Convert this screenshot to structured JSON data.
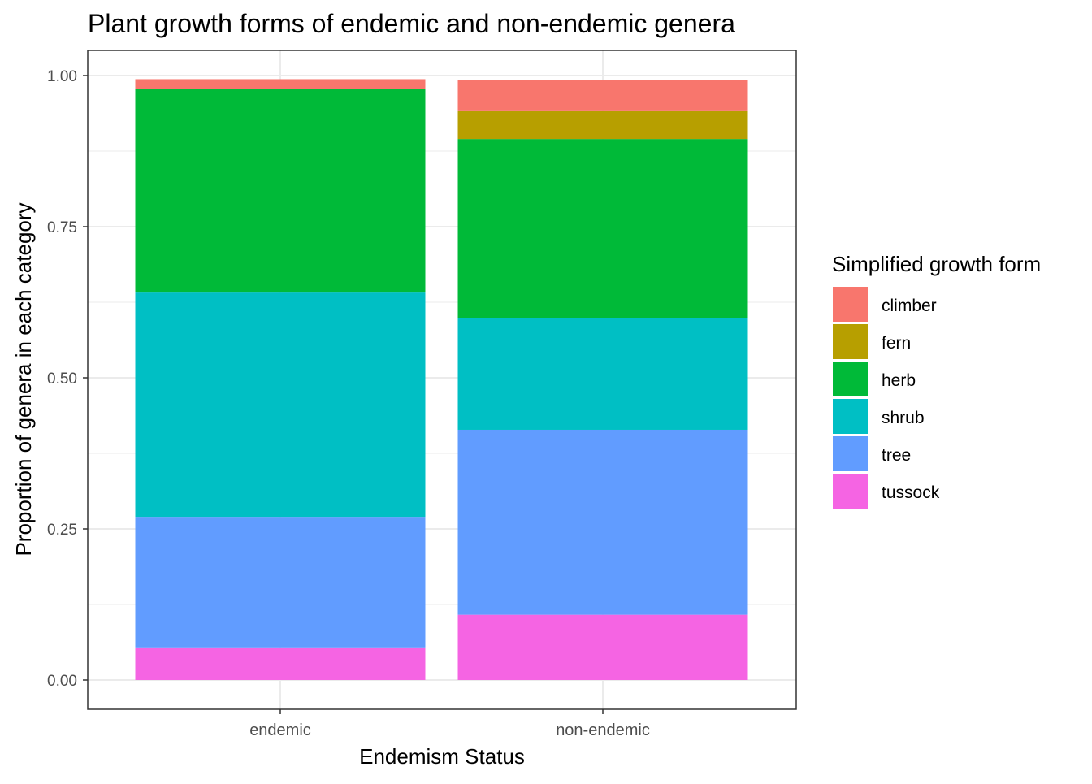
{
  "chart_data": {
    "type": "bar",
    "stacked": true,
    "title": "Plant growth forms of endemic and non-endemic genera",
    "xlabel": "Endemism Status",
    "ylabel": "Proportion of genera in each category",
    "categories": [
      "endemic",
      "non-endemic"
    ],
    "ylim": [
      0,
      1
    ],
    "yticks": [
      "0.00",
      "0.25",
      "0.50",
      "0.75",
      "1.00"
    ],
    "ytick_values": [
      0,
      0.25,
      0.5,
      0.75,
      1.0
    ],
    "grid": true,
    "legend": {
      "title": "Simplified growth form",
      "position": "right"
    },
    "series": [
      {
        "name": "tussock",
        "color": "#F564E3",
        "values": [
          0.054,
          0.108
        ]
      },
      {
        "name": "tree",
        "color": "#619CFF",
        "values": [
          0.216,
          0.306
        ]
      },
      {
        "name": "shrub",
        "color": "#00BFC4",
        "values": [
          0.371,
          0.185
        ]
      },
      {
        "name": "herb",
        "color": "#00BA38",
        "values": [
          0.337,
          0.296
        ]
      },
      {
        "name": "fern",
        "color": "#B79F00",
        "values": [
          0.0,
          0.046
        ]
      },
      {
        "name": "climber",
        "color": "#F8766D",
        "values": [
          0.016,
          0.051
        ]
      }
    ],
    "legend_order": [
      "climber",
      "fern",
      "herb",
      "shrub",
      "tree",
      "tussock"
    ]
  }
}
